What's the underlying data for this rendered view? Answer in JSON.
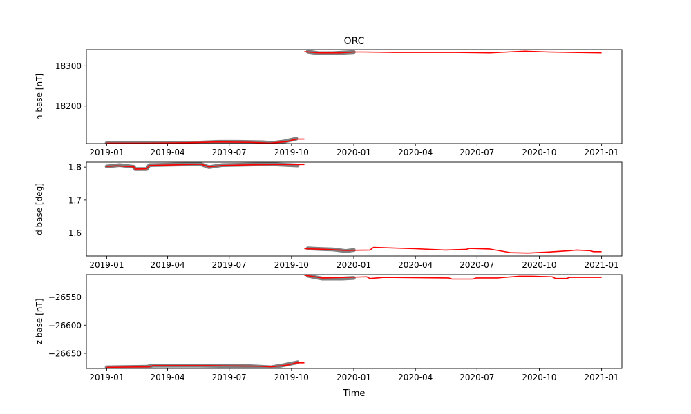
{
  "figure": {
    "title": "ORC",
    "xlabel": "Time"
  },
  "chart_data": [
    {
      "type": "scatter",
      "panel": "top",
      "title": "ORC",
      "xlabel": "",
      "ylabel": "h base [nT]",
      "xlim": [
        "2018-12-02",
        "2021-01-31"
      ],
      "ylim": [
        18107,
        18340
      ],
      "x_ticks": [
        "2019-01",
        "2019-04",
        "2019-07",
        "2019-10",
        "2020-01",
        "2020-04",
        "2020-07",
        "2020-10",
        "2021-01"
      ],
      "y_ticks": [
        18200,
        18300
      ],
      "series": [
        {
          "role": "observations",
          "color": "#808080",
          "segments": [
            [
              [
                "2019-01-01",
                18108
              ],
              [
                "2019-02-15",
                18108
              ],
              [
                "2019-04-01",
                18109
              ],
              [
                "2019-05-15",
                18109
              ],
              [
                "2019-06-15",
                18111
              ],
              [
                "2019-07-15",
                18111
              ],
              [
                "2019-08-20",
                18110
              ],
              [
                "2019-09-01",
                18108
              ],
              [
                "2019-09-20",
                18112
              ],
              [
                "2019-10-08",
                18119
              ]
            ],
            [
              [
                "2019-10-25",
                18335
              ],
              [
                "2019-11-10",
                18331
              ],
              [
                "2019-12-01",
                18331
              ],
              [
                "2020-01-01",
                18334
              ]
            ]
          ]
        },
        {
          "role": "fit",
          "color": "#ff0000",
          "segments": [
            [
              [
                "2019-01-01",
                18108
              ],
              [
                "2019-03-01",
                18108
              ],
              [
                "2019-05-01",
                18109
              ],
              [
                "2019-06-15",
                18111
              ],
              [
                "2019-08-01",
                18110
              ],
              [
                "2019-08-30",
                18108
              ],
              [
                "2019-09-25",
                18112
              ],
              [
                "2019-10-08",
                18118
              ],
              [
                "2019-10-20",
                18118
              ]
            ],
            [
              [
                "2019-10-20",
                18335
              ],
              [
                "2019-11-10",
                18332
              ],
              [
                "2019-12-10",
                18332
              ],
              [
                "2020-01-01",
                18334
              ],
              [
                "2020-01-15",
                18334
              ],
              [
                "2020-03-01",
                18333
              ],
              [
                "2020-06-01",
                18333
              ],
              [
                "2020-07-20",
                18332
              ],
              [
                "2020-08-15",
                18334
              ],
              [
                "2020-09-10",
                18336
              ],
              [
                "2020-10-15",
                18334
              ],
              [
                "2020-11-20",
                18333
              ],
              [
                "2021-01-01",
                18332
              ]
            ]
          ]
        }
      ]
    },
    {
      "type": "scatter",
      "panel": "middle",
      "xlabel": "",
      "ylabel": "d base [deg]",
      "xlim": [
        "2018-12-02",
        "2021-01-31"
      ],
      "ylim": [
        1.53,
        1.815
      ],
      "x_ticks": [
        "2019-01",
        "2019-04",
        "2019-07",
        "2019-10",
        "2020-01",
        "2020-04",
        "2020-07",
        "2020-10",
        "2021-01"
      ],
      "y_ticks": [
        1.6,
        1.7,
        1.8
      ],
      "series": [
        {
          "role": "observations",
          "color": "#808080",
          "segments": [
            [
              [
                "2019-01-01",
                1.802
              ],
              [
                "2019-01-20",
                1.806
              ],
              [
                "2019-02-10",
                1.801
              ],
              [
                "2019-02-12",
                1.794
              ],
              [
                "2019-03-01",
                1.794
              ],
              [
                "2019-03-05",
                1.806
              ],
              [
                "2019-04-15",
                1.808
              ],
              [
                "2019-05-20",
                1.809
              ],
              [
                "2019-06-01",
                1.8
              ],
              [
                "2019-06-20",
                1.806
              ],
              [
                "2019-08-01",
                1.808
              ],
              [
                "2019-09-01",
                1.809
              ],
              [
                "2019-10-10",
                1.805
              ]
            ],
            [
              [
                "2019-10-25",
                1.553
              ],
              [
                "2019-11-15",
                1.551
              ],
              [
                "2019-12-01",
                1.55
              ],
              [
                "2019-12-20",
                1.545
              ],
              [
                "2020-01-01",
                1.548
              ]
            ]
          ]
        },
        {
          "role": "fit",
          "color": "#ff0000",
          "segments": [
            [
              [
                "2019-01-01",
                1.802
              ],
              [
                "2019-01-15",
                1.804
              ],
              [
                "2019-02-10",
                1.801
              ],
              [
                "2019-02-12",
                1.794
              ],
              [
                "2019-03-01",
                1.795
              ],
              [
                "2019-03-05",
                1.805
              ],
              [
                "2019-05-20",
                1.809
              ],
              [
                "2019-06-01",
                1.801
              ],
              [
                "2019-06-20",
                1.805
              ],
              [
                "2019-08-01",
                1.807
              ],
              [
                "2019-09-01",
                1.808
              ],
              [
                "2019-10-20",
                1.808
              ]
            ],
            [
              [
                "2019-10-20",
                1.552
              ],
              [
                "2019-11-20",
                1.55
              ],
              [
                "2019-12-20",
                1.547
              ],
              [
                "2020-01-25",
                1.548
              ],
              [
                "2020-01-30",
                1.556
              ],
              [
                "2020-04-01",
                1.552
              ],
              [
                "2020-05-15",
                1.548
              ],
              [
                "2020-06-15",
                1.55
              ],
              [
                "2020-06-20",
                1.553
              ],
              [
                "2020-07-20",
                1.551
              ],
              [
                "2020-08-20",
                1.54
              ],
              [
                "2020-09-15",
                1.539
              ],
              [
                "2020-10-15",
                1.542
              ],
              [
                "2020-11-15",
                1.546
              ],
              [
                "2020-11-25",
                1.548
              ],
              [
                "2020-12-15",
                1.546
              ],
              [
                "2020-12-20",
                1.543
              ],
              [
                "2021-01-01",
                1.543
              ]
            ]
          ]
        }
      ]
    },
    {
      "type": "scatter",
      "panel": "bottom",
      "xlabel": "Time",
      "ylabel": "z base [nT]",
      "xlim": [
        "2018-12-02",
        "2021-01-31"
      ],
      "ylim": [
        -26677,
        -26510
      ],
      "x_ticks": [
        "2019-01",
        "2019-04",
        "2019-07",
        "2019-10",
        "2020-01",
        "2020-04",
        "2020-07",
        "2020-10",
        "2021-01"
      ],
      "y_ticks": [
        -26550,
        -26600,
        -26650
      ],
      "series": [
        {
          "role": "observations",
          "color": "#808080",
          "segments": [
            [
              [
                "2019-01-01",
                -26675
              ],
              [
                "2019-03-01",
                -26674
              ],
              [
                "2019-03-10",
                -26672
              ],
              [
                "2019-05-15",
                -26672
              ],
              [
                "2019-08-01",
                -26673
              ],
              [
                "2019-09-01",
                -26675
              ],
              [
                "2019-09-20",
                -26671
              ],
              [
                "2019-10-10",
                -26666
              ]
            ],
            [
              [
                "2019-10-25",
                -26512
              ],
              [
                "2019-11-15",
                -26517
              ],
              [
                "2019-12-15",
                -26517
              ],
              [
                "2020-01-01",
                -26516
              ]
            ]
          ]
        },
        {
          "role": "fit",
          "color": "#ff0000",
          "segments": [
            [
              [
                "2019-01-01",
                -26675
              ],
              [
                "2019-03-05",
                -26674
              ],
              [
                "2019-03-10",
                -26672
              ],
              [
                "2019-06-01",
                -26672
              ],
              [
                "2019-08-15",
                -26673
              ],
              [
                "2019-09-01",
                -26674
              ],
              [
                "2019-09-25",
                -26671
              ],
              [
                "2019-10-08",
                -26667
              ],
              [
                "2019-10-20",
                -26667
              ]
            ],
            [
              [
                "2019-10-20",
                -26511
              ],
              [
                "2019-11-15",
                -26516
              ],
              [
                "2019-12-20",
                -26515
              ],
              [
                "2020-01-20",
                -26514
              ],
              [
                "2020-01-25",
                -26517
              ],
              [
                "2020-02-15",
                -26515
              ],
              [
                "2020-05-20",
                -26516
              ],
              [
                "2020-05-25",
                -26518
              ],
              [
                "2020-06-25",
                -26518
              ],
              [
                "2020-06-30",
                -26516
              ],
              [
                "2020-08-01",
                -26516
              ],
              [
                "2020-09-01",
                -26513
              ],
              [
                "2020-09-20",
                -26513
              ],
              [
                "2020-10-20",
                -26514
              ],
              [
                "2020-10-25",
                -26517
              ],
              [
                "2020-11-10",
                -26517
              ],
              [
                "2020-11-15",
                -26515
              ],
              [
                "2021-01-01",
                -26515
              ]
            ]
          ]
        }
      ]
    }
  ]
}
